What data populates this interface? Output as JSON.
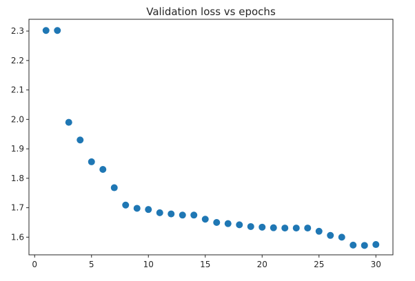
{
  "chart_data": {
    "type": "scatter",
    "title": "Validation loss vs epochs",
    "xlabel": "",
    "ylabel": "",
    "xlim": [
      -0.5,
      31.5
    ],
    "ylim": [
      1.54,
      2.34
    ],
    "xticks": [
      0,
      5,
      10,
      15,
      20,
      25,
      30
    ],
    "yticks": [
      1.6,
      1.7,
      1.8,
      1.9,
      2.0,
      2.1,
      2.2,
      2.3
    ],
    "grid": false,
    "color": "#1f77b4",
    "series": [
      {
        "x": [
          1,
          2,
          3,
          4,
          5,
          6,
          7,
          8,
          9,
          10,
          11,
          12,
          13,
          14,
          15,
          16,
          17,
          18,
          19,
          20,
          21,
          22,
          23,
          24,
          25,
          26,
          27,
          28,
          29,
          30
        ],
        "y": [
          2.302,
          2.302,
          1.99,
          1.93,
          1.856,
          1.83,
          1.768,
          1.709,
          1.698,
          1.694,
          1.683,
          1.679,
          1.675,
          1.675,
          1.661,
          1.65,
          1.646,
          1.642,
          1.636,
          1.634,
          1.632,
          1.631,
          1.631,
          1.631,
          1.62,
          1.606,
          1.6,
          1.573,
          1.572,
          1.575
        ]
      }
    ]
  }
}
